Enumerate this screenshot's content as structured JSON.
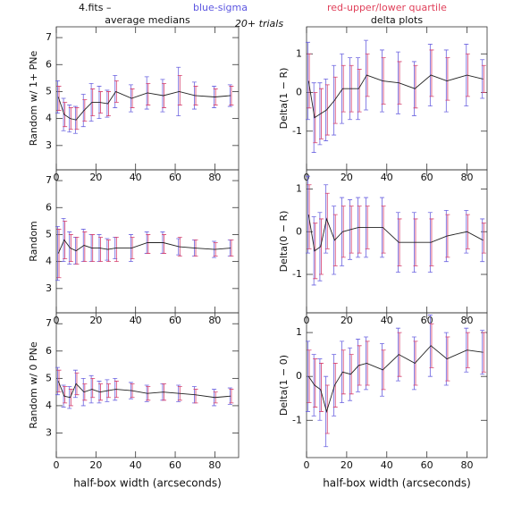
{
  "header": {
    "file": "4.fits  –",
    "sigma_note": "blue-sigma",
    "quartile_note": "red-upper/lower quartile",
    "left_title": "average medians",
    "trials": "20+ trials",
    "right_title": "delta plots"
  },
  "chart_data": [
    {
      "type": "errorbar",
      "ylabel": "Random w/ 1+ PNe",
      "xlim": [
        0,
        92
      ],
      "ylim": [
        2.1,
        7.4
      ],
      "xticks": [
        0,
        20,
        40,
        60,
        80
      ],
      "yticks": [
        3,
        4,
        5,
        6,
        7
      ],
      "line_color": "#222222",
      "sigma_color": "#6b63e0",
      "quartile_color": "#d6406e",
      "x": [
        1,
        4,
        7,
        10,
        14,
        18,
        22,
        26,
        30,
        38,
        46,
        54,
        62,
        70,
        80,
        88
      ],
      "values": [
        4.8,
        4.15,
        4.0,
        3.95,
        4.3,
        4.6,
        4.6,
        4.55,
        5.0,
        4.75,
        4.95,
        4.85,
        5.0,
        4.85,
        4.8,
        4.85
      ],
      "sigma": [
        0.6,
        0.6,
        0.5,
        0.5,
        0.6,
        0.7,
        0.6,
        0.5,
        0.6,
        0.5,
        0.6,
        0.6,
        0.9,
        0.5,
        0.4,
        0.4
      ],
      "q_low": [
        4.3,
        3.7,
        3.6,
        3.6,
        3.9,
        4.1,
        4.2,
        4.1,
        4.6,
        4.4,
        4.5,
        4.4,
        4.5,
        4.5,
        4.5,
        4.5
      ],
      "q_high": [
        5.2,
        4.6,
        4.4,
        4.4,
        4.7,
        5.1,
        5.0,
        5.0,
        5.4,
        5.1,
        5.3,
        5.3,
        5.6,
        5.2,
        5.1,
        5.2
      ]
    },
    {
      "type": "errorbar",
      "ylabel": "Random",
      "xlim": [
        0,
        92
      ],
      "ylim": [
        2.1,
        7.4
      ],
      "xticks": [
        0,
        20,
        40,
        60,
        80
      ],
      "yticks": [
        3,
        4,
        5,
        6,
        7
      ],
      "line_color": "#222222",
      "sigma_color": "#6b63e0",
      "quartile_color": "#d6406e",
      "x": [
        1,
        4,
        7,
        10,
        14,
        18,
        22,
        26,
        30,
        38,
        46,
        54,
        62,
        70,
        80,
        88
      ],
      "values": [
        4.3,
        4.8,
        4.5,
        4.4,
        4.6,
        4.5,
        4.5,
        4.45,
        4.5,
        4.5,
        4.7,
        4.7,
        4.55,
        4.5,
        4.45,
        4.5
      ],
      "sigma": [
        1.0,
        0.8,
        0.6,
        0.5,
        0.6,
        0.5,
        0.5,
        0.4,
        0.4,
        0.5,
        0.4,
        0.4,
        0.3,
        0.3,
        0.3,
        0.3
      ],
      "q_low": [
        3.4,
        4.1,
        4.0,
        3.9,
        4.0,
        4.0,
        4.0,
        4.0,
        4.0,
        4.1,
        4.3,
        4.3,
        4.2,
        4.2,
        4.2,
        4.2
      ],
      "q_high": [
        5.2,
        5.5,
        5.0,
        4.9,
        5.1,
        5.0,
        4.9,
        4.8,
        4.9,
        4.9,
        5.0,
        5.0,
        4.9,
        4.8,
        4.7,
        4.8
      ]
    },
    {
      "type": "errorbar",
      "ylabel": "Random w/ 0 PNe",
      "xlabel": "half-box width (arcseconds)",
      "xlim": [
        0,
        92
      ],
      "ylim": [
        2.1,
        7.4
      ],
      "xticks": [
        0,
        20,
        40,
        60,
        80
      ],
      "yticks": [
        3,
        4,
        5,
        6,
        7
      ],
      "line_color": "#222222",
      "sigma_color": "#6b63e0",
      "quartile_color": "#d6406e",
      "x": [
        1,
        4,
        7,
        10,
        14,
        18,
        22,
        26,
        30,
        38,
        46,
        54,
        62,
        70,
        80,
        88
      ],
      "values": [
        4.9,
        4.35,
        4.3,
        4.8,
        4.5,
        4.6,
        4.5,
        4.55,
        4.6,
        4.55,
        4.45,
        4.5,
        4.45,
        4.4,
        4.3,
        4.35
      ],
      "sigma": [
        0.5,
        0.4,
        0.4,
        0.5,
        0.5,
        0.5,
        0.4,
        0.4,
        0.4,
        0.3,
        0.3,
        0.3,
        0.3,
        0.3,
        0.3,
        0.3
      ],
      "q_low": [
        4.5,
        4.1,
        4.0,
        4.4,
        4.2,
        4.3,
        4.2,
        4.3,
        4.3,
        4.3,
        4.2,
        4.2,
        4.2,
        4.1,
        4.1,
        4.1
      ],
      "q_high": [
        5.3,
        4.7,
        4.6,
        5.2,
        4.8,
        5.0,
        4.8,
        4.8,
        4.9,
        4.8,
        4.7,
        4.8,
        4.7,
        4.6,
        4.5,
        4.6
      ]
    },
    {
      "type": "errorbar",
      "ylabel": "Delta(1 − R)",
      "xlim": [
        0,
        90
      ],
      "ylim": [
        -2.0,
        1.7
      ],
      "xticks": [
        0,
        20,
        40,
        60,
        80
      ],
      "yticks": [
        -1,
        0,
        1
      ],
      "line_color": "#222222",
      "sigma_color": "#6b63e0",
      "quartile_color": "#d6406e",
      "x": [
        1,
        4,
        7,
        10,
        14,
        18,
        22,
        26,
        30,
        38,
        46,
        54,
        62,
        70,
        80,
        88
      ],
      "values": [
        0.3,
        -0.65,
        -0.55,
        -0.45,
        -0.2,
        0.1,
        0.1,
        0.1,
        0.45,
        0.3,
        0.25,
        0.1,
        0.45,
        0.3,
        0.45,
        0.35
      ],
      "sigma": [
        1.0,
        0.9,
        0.8,
        0.8,
        0.9,
        0.9,
        0.8,
        0.8,
        0.9,
        0.8,
        0.8,
        0.7,
        0.8,
        0.8,
        0.8,
        0.5
      ],
      "q_low": [
        -0.4,
        -1.3,
        -1.2,
        -1.1,
        -0.8,
        -0.5,
        -0.5,
        -0.5,
        -0.1,
        -0.3,
        -0.3,
        -0.4,
        -0.1,
        -0.2,
        -0.1,
        0.0
      ],
      "q_high": [
        1.0,
        0.0,
        0.1,
        0.2,
        0.4,
        0.7,
        0.7,
        0.6,
        1.0,
        0.9,
        0.8,
        0.7,
        1.1,
        0.9,
        1.0,
        0.7
      ]
    },
    {
      "type": "errorbar",
      "ylabel": "Delta(0 − R)",
      "xlim": [
        0,
        90
      ],
      "ylim": [
        -1.9,
        1.45
      ],
      "xticks": [
        0,
        20,
        40,
        60,
        80
      ],
      "yticks": [
        -1,
        0,
        1
      ],
      "line_color": "#222222",
      "sigma_color": "#6b63e0",
      "quartile_color": "#d6406e",
      "x": [
        1,
        4,
        7,
        10,
        14,
        18,
        22,
        26,
        30,
        38,
        46,
        54,
        62,
        70,
        80,
        88
      ],
      "values": [
        0.4,
        -0.45,
        -0.35,
        0.3,
        -0.2,
        0.0,
        0.05,
        0.1,
        0.1,
        0.1,
        -0.25,
        -0.25,
        -0.25,
        -0.1,
        0.0,
        -0.2
      ],
      "sigma": [
        0.9,
        0.8,
        0.8,
        0.8,
        0.8,
        0.8,
        0.7,
        0.7,
        0.7,
        0.7,
        0.7,
        0.7,
        0.7,
        0.6,
        0.5,
        0.5
      ],
      "q_low": [
        -0.4,
        -1.1,
        -1.0,
        -0.4,
        -0.8,
        -0.6,
        -0.5,
        -0.5,
        -0.4,
        -0.5,
        -0.8,
        -0.8,
        -0.8,
        -0.6,
        -0.4,
        -0.5
      ],
      "q_high": [
        1.1,
        0.2,
        0.3,
        0.9,
        0.4,
        0.6,
        0.6,
        0.6,
        0.6,
        0.6,
        0.3,
        0.3,
        0.3,
        0.4,
        0.4,
        0.2
      ]
    },
    {
      "type": "errorbar",
      "ylabel": "Delta(1 − 0)",
      "xlabel": "half-box width (arcseconds)",
      "xlim": [
        0,
        90
      ],
      "ylim": [
        -1.85,
        1.45
      ],
      "xticks": [
        0,
        20,
        40,
        60,
        80
      ],
      "yticks": [
        -1,
        0,
        1
      ],
      "line_color": "#222222",
      "sigma_color": "#6b63e0",
      "quartile_color": "#d6406e",
      "x": [
        1,
        4,
        7,
        10,
        14,
        18,
        22,
        26,
        30,
        38,
        46,
        54,
        62,
        70,
        80,
        88
      ],
      "values": [
        0.0,
        -0.2,
        -0.3,
        -0.8,
        -0.2,
        0.1,
        0.05,
        0.25,
        0.3,
        0.15,
        0.5,
        0.3,
        0.7,
        0.4,
        0.6,
        0.55
      ],
      "sigma": [
        0.8,
        0.7,
        0.7,
        0.8,
        0.7,
        0.7,
        0.6,
        0.6,
        0.6,
        0.6,
        0.6,
        0.6,
        0.7,
        0.6,
        0.5,
        0.5
      ],
      "q_low": [
        -0.6,
        -0.7,
        -0.8,
        -1.3,
        -0.7,
        -0.4,
        -0.4,
        -0.2,
        -0.2,
        -0.3,
        0.0,
        -0.2,
        0.2,
        -0.1,
        0.2,
        0.1
      ],
      "q_high": [
        0.6,
        0.4,
        0.3,
        -0.2,
        0.3,
        0.6,
        0.5,
        0.7,
        0.8,
        0.6,
        1.0,
        0.8,
        1.2,
        0.9,
        1.0,
        1.0
      ]
    }
  ]
}
